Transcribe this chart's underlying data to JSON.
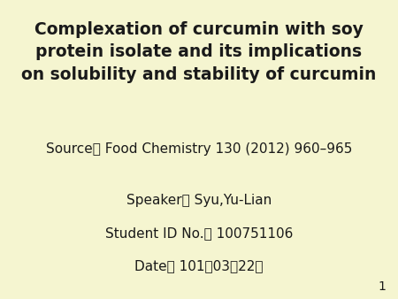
{
  "background_color": "#f5f5d0",
  "title_line1": "Complexation of curcumin with soy",
  "title_line2": "protein isolate and its implications",
  "title_line3": "on solubility and stability of curcumin",
  "source_line": "Source： Food Chemistry 130 (2012) 960–965",
  "speaker_line": "Speaker： Syu,Yu-Lian",
  "student_line": "Student ID No.： 100751106",
  "date_line": "Date： 101年03月22日",
  "page_number": "1",
  "text_color": "#1a1a1a",
  "title_fontsize": 13.5,
  "body_fontsize": 11,
  "page_fontsize": 10
}
